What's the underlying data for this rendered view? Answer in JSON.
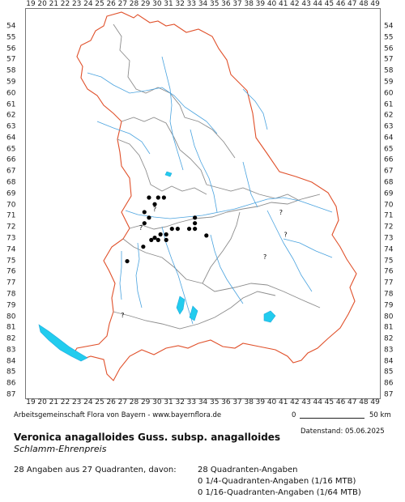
{
  "grid": {
    "x_labels": [
      "19",
      "20",
      "21",
      "22",
      "23",
      "24",
      "25",
      "26",
      "27",
      "28",
      "29",
      "30",
      "31",
      "32",
      "33",
      "34",
      "35",
      "36",
      "37",
      "38",
      "39",
      "40",
      "41",
      "42",
      "43",
      "44",
      "45",
      "46",
      "47",
      "48",
      "49"
    ],
    "y_labels": [
      "54",
      "55",
      "56",
      "57",
      "58",
      "59",
      "60",
      "61",
      "62",
      "63",
      "64",
      "65",
      "66",
      "67",
      "68",
      "69",
      "70",
      "71",
      "72",
      "73",
      "74",
      "75",
      "76",
      "77",
      "78",
      "79",
      "80",
      "81",
      "82",
      "83",
      "84",
      "85",
      "86",
      "87"
    ]
  },
  "records": {
    "points": [
      {
        "x": 29.3,
        "y": 69.3
      },
      {
        "x": 30.1,
        "y": 69.3
      },
      {
        "x": 30.6,
        "y": 69.3
      },
      {
        "x": 29.8,
        "y": 69.9
      },
      {
        "x": 28.9,
        "y": 70.6
      },
      {
        "x": 29.3,
        "y": 71.1
      },
      {
        "x": 33.3,
        "y": 71.1
      },
      {
        "x": 28.9,
        "y": 71.6
      },
      {
        "x": 33.3,
        "y": 71.6
      },
      {
        "x": 31.3,
        "y": 72.1
      },
      {
        "x": 31.8,
        "y": 72.1
      },
      {
        "x": 32.8,
        "y": 72.1
      },
      {
        "x": 33.3,
        "y": 72.1
      },
      {
        "x": 30.3,
        "y": 72.6
      },
      {
        "x": 30.8,
        "y": 72.6
      },
      {
        "x": 34.3,
        "y": 72.7
      },
      {
        "x": 29.8,
        "y": 72.9
      },
      {
        "x": 29.5,
        "y": 73.1
      },
      {
        "x": 30.1,
        "y": 73.1
      },
      {
        "x": 30.8,
        "y": 73.1
      },
      {
        "x": 28.8,
        "y": 73.7
      },
      {
        "x": 27.4,
        "y": 75.0
      }
    ],
    "uncertain": [
      {
        "x": 29.8,
        "y": 70.3
      },
      {
        "x": 28.6,
        "y": 72.0
      },
      {
        "x": 40.8,
        "y": 70.6
      },
      {
        "x": 41.2,
        "y": 72.6
      },
      {
        "x": 39.4,
        "y": 74.6
      },
      {
        "x": 27.0,
        "y": 79.8
      }
    ],
    "uncertain_symbol": "?",
    "colors": {
      "dot": "#000000",
      "state_border": "#e0502a",
      "district_border": "#8c8c8c",
      "rivers": "#4aa3df",
      "lakes": "#22ccee"
    }
  },
  "footer": {
    "credit": "Arbeitsgemeinschaft Flora von Bayern - www.bayernflora.de",
    "scale_zero": "0",
    "scale_label": "50 km",
    "date": "Datenstand: 05.06.2025",
    "scientific_name": "Veronica anagalloides Guss. subsp. anagalloides",
    "common_name": "Schlamm-Ehrenpreis",
    "summary": "28 Angaben aus 27 Quadranten, davon:",
    "quadrant_stats": [
      "28 Quadranten-Angaben",
      "0 1/4-Quadranten-Angaben (1/16 MTB)",
      "0 1/16-Quadranten-Angaben (1/64 MTB)"
    ]
  }
}
